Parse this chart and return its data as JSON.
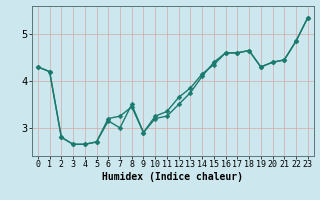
{
  "xlabel": "Humidex (Indice chaleur)",
  "background_color": "#cce8ee",
  "grid_color": "#b8d4d8",
  "line_color": "#1a7a6e",
  "xlim": [
    -0.5,
    23.5
  ],
  "ylim": [
    2.4,
    5.6
  ],
  "yticks": [
    3,
    4,
    5
  ],
  "xticks": [
    0,
    1,
    2,
    3,
    4,
    5,
    6,
    7,
    8,
    9,
    10,
    11,
    12,
    13,
    14,
    15,
    16,
    17,
    18,
    19,
    20,
    21,
    22,
    23
  ],
  "series1_x": [
    0,
    1,
    2,
    3,
    4,
    5,
    6,
    7,
    8,
    9,
    10,
    11,
    12,
    13,
    14,
    15,
    16,
    17,
    18,
    19,
    20,
    21,
    22,
    23
  ],
  "series1_y": [
    4.3,
    4.2,
    2.8,
    2.65,
    2.65,
    2.7,
    3.2,
    3.25,
    3.45,
    2.9,
    3.2,
    3.25,
    3.5,
    3.75,
    4.1,
    4.4,
    4.6,
    4.6,
    4.65,
    4.3,
    4.4,
    4.45,
    4.85,
    5.35
  ],
  "series2_x": [
    0,
    1,
    2,
    3,
    4,
    5,
    6,
    7,
    8,
    9,
    10,
    11,
    12,
    13,
    14,
    15,
    16,
    17,
    18,
    19,
    20,
    21,
    22,
    23
  ],
  "series2_y": [
    4.3,
    4.2,
    2.8,
    2.65,
    2.65,
    2.7,
    3.15,
    3.0,
    3.5,
    2.9,
    3.25,
    3.35,
    3.65,
    3.85,
    4.15,
    4.35,
    4.6,
    4.6,
    4.65,
    4.3,
    4.4,
    4.45,
    4.85,
    5.35
  ],
  "marker_size": 2.5,
  "line_width": 1.0,
  "xlabel_fontsize": 7,
  "tick_fontsize": 6
}
